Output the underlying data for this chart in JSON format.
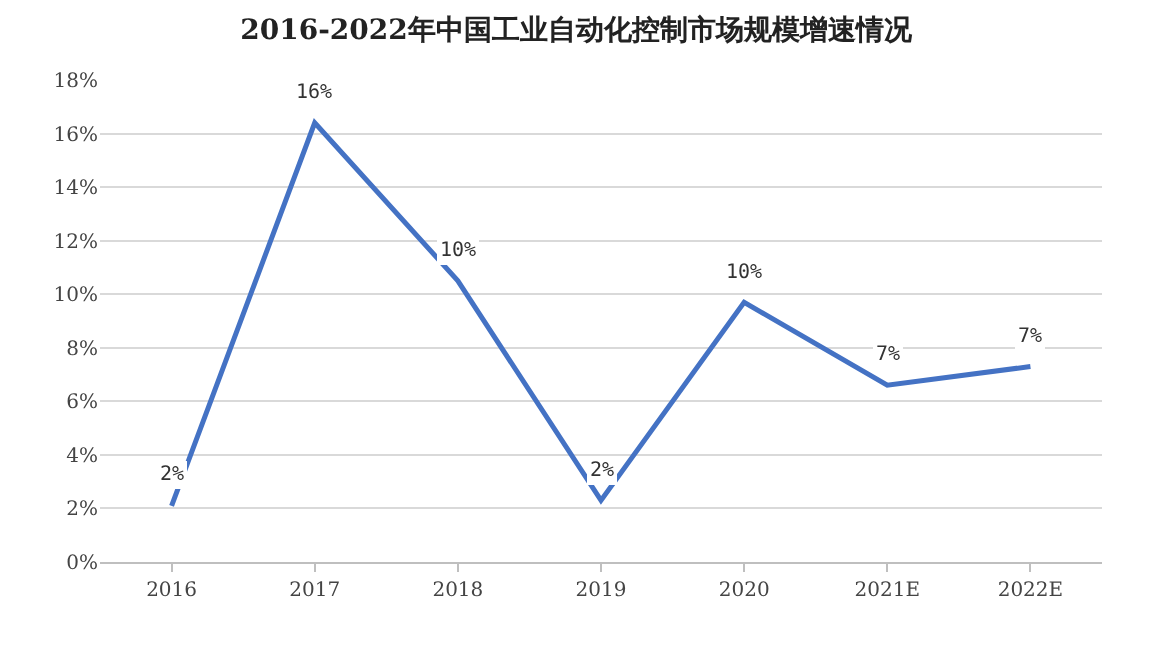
{
  "chart_data": {
    "type": "line",
    "title": "2016-2022年中国工业自动化控制市场规模增速情况",
    "categories": [
      "2016",
      "2017",
      "2018",
      "2019",
      "2020",
      "2021E",
      "2022E"
    ],
    "series": [
      {
        "color": "#4472c4",
        "values": [
          2.1,
          16.4,
          10.5,
          2.3,
          9.7,
          6.6,
          7.3
        ],
        "value_labels": [
          "2%",
          "16%",
          "10%",
          "2%",
          "10%",
          "7%",
          "7%"
        ]
      }
    ],
    "ylim": [
      0,
      18
    ],
    "yticks": [
      {
        "value": 0,
        "label": "0%"
      },
      {
        "value": 2,
        "label": "2%"
      },
      {
        "value": 4,
        "label": "4%"
      },
      {
        "value": 6,
        "label": "6%"
      },
      {
        "value": 8,
        "label": "8%"
      },
      {
        "value": 10,
        "label": "10%"
      },
      {
        "value": 12,
        "label": "12%"
      },
      {
        "value": 14,
        "label": "14%"
      },
      {
        "value": 16,
        "label": "16%"
      },
      {
        "value": 18,
        "label": "18%"
      }
    ],
    "grid": "y",
    "marker": "none",
    "line_style": "solid"
  }
}
